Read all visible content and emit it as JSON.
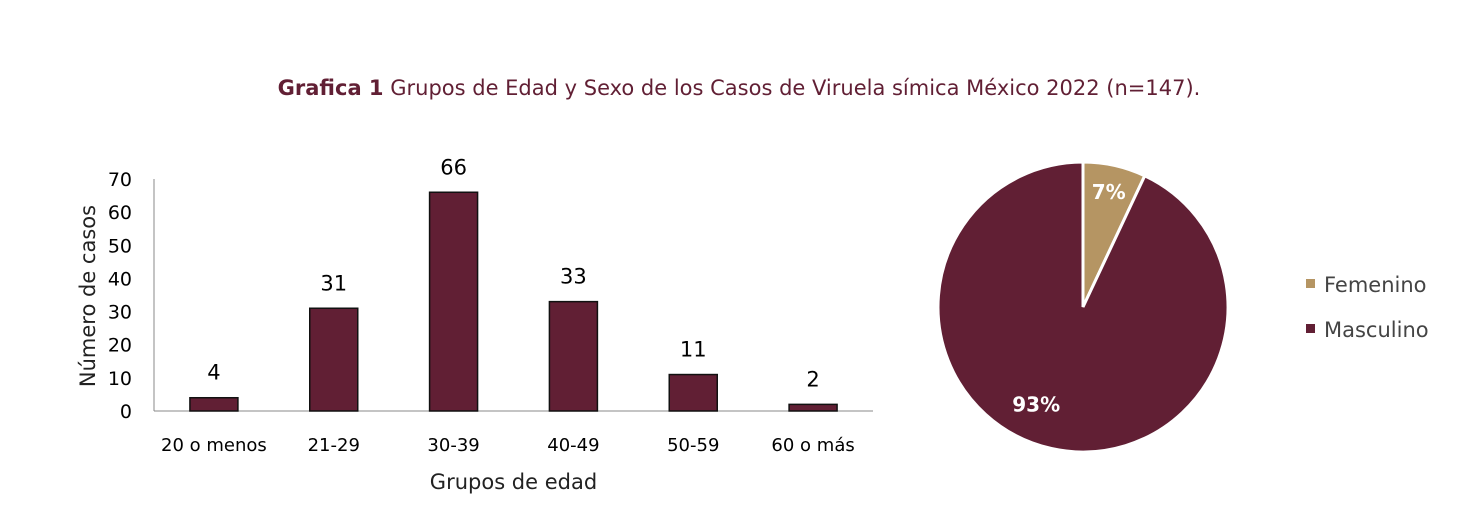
{
  "title": {
    "bold": "Grafica 1",
    "rest": " Grupos de Edad y Sexo de los Casos de Viruela símica México 2022 (n=147)."
  },
  "colors": {
    "bar": "#611F34",
    "femenino": "#B59563",
    "masculino": "#611F34",
    "title": "#611F34"
  },
  "chart_data": [
    {
      "type": "bar",
      "categories": [
        "20 o menos",
        "21-29",
        "30-39",
        "40-49",
        "50-59",
        "60 o más"
      ],
      "values": [
        4,
        31,
        66,
        33,
        11,
        2
      ],
      "xlabel": "Grupos de edad",
      "ylabel": "Número de casos",
      "ylim": [
        0,
        70
      ],
      "yticks": [
        0,
        10,
        20,
        30,
        40,
        50,
        60,
        70
      ],
      "data_labels": true,
      "grid": false
    },
    {
      "type": "pie",
      "categories": [
        "Femenino",
        "Masculino"
      ],
      "values": [
        7,
        93
      ],
      "labels": [
        "7%",
        "93%"
      ],
      "legend": "right"
    }
  ]
}
